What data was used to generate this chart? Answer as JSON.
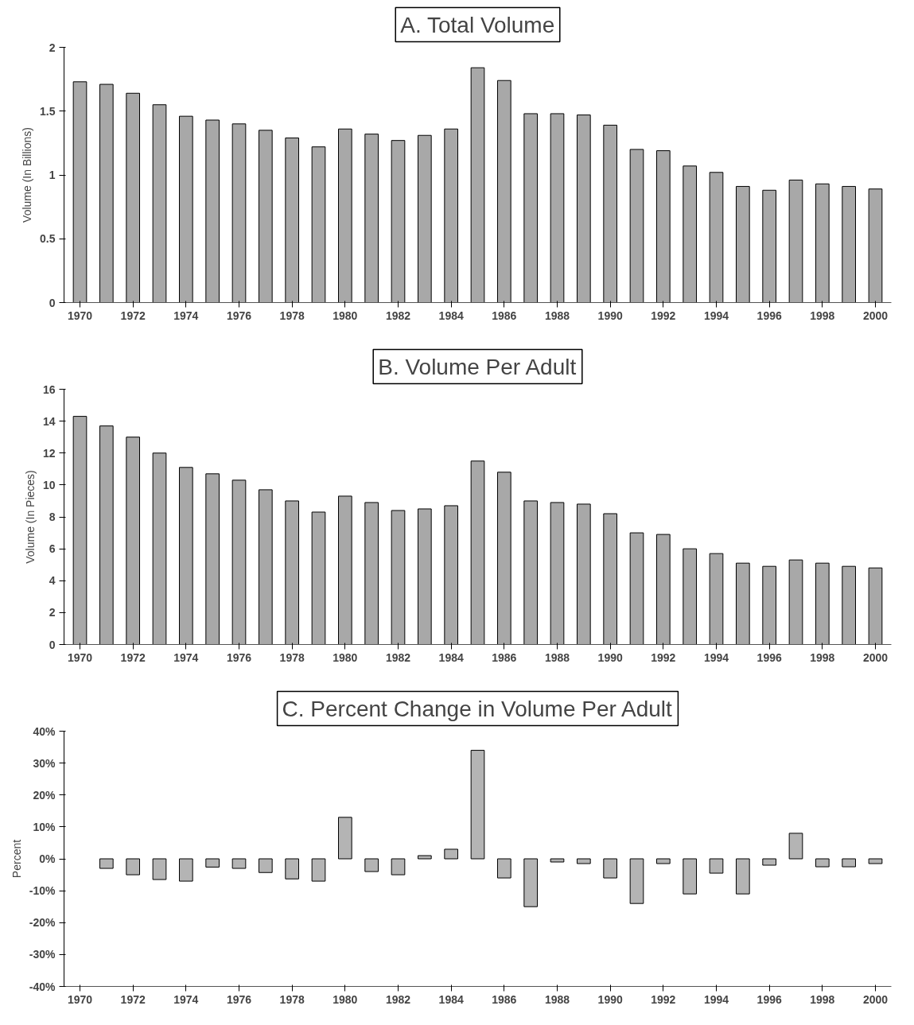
{
  "chart_data": [
    {
      "type": "bar",
      "title": "A. Total Volume",
      "ylabel": "Volume (In Billions)",
      "color": "#a8a8a8",
      "x": [
        1970,
        1971,
        1972,
        1973,
        1974,
        1975,
        1976,
        1977,
        1978,
        1979,
        1980,
        1981,
        1982,
        1983,
        1984,
        1985,
        1986,
        1987,
        1988,
        1989,
        1990,
        1991,
        1992,
        1993,
        1994,
        1995,
        1996,
        1997,
        1998,
        1999,
        2000
      ],
      "values": [
        1.73,
        1.71,
        1.64,
        1.55,
        1.46,
        1.43,
        1.4,
        1.35,
        1.29,
        1.22,
        1.36,
        1.32,
        1.27,
        1.31,
        1.36,
        1.84,
        1.74,
        1.48,
        1.48,
        1.47,
        1.39,
        1.2,
        1.19,
        1.07,
        1.02,
        0.91,
        0.88,
        0.96,
        0.93,
        0.91,
        0.89
      ],
      "xlim": [
        1969.4,
        2000.6
      ],
      "xticks": [
        1970,
        1972,
        1974,
        1976,
        1978,
        1980,
        1982,
        1984,
        1986,
        1988,
        1990,
        1992,
        1994,
        1996,
        1998,
        2000
      ],
      "ylim": [
        0,
        2
      ],
      "yticks": [
        0,
        0.5,
        1,
        1.5,
        2
      ],
      "grid": false
    },
    {
      "type": "bar",
      "title": "B. Volume Per Adult",
      "ylabel": "Volume (In Pieces)",
      "color": "#a8a8a8",
      "x": [
        1970,
        1971,
        1972,
        1973,
        1974,
        1975,
        1976,
        1977,
        1978,
        1979,
        1980,
        1981,
        1982,
        1983,
        1984,
        1985,
        1986,
        1987,
        1988,
        1989,
        1990,
        1991,
        1992,
        1993,
        1994,
        1995,
        1996,
        1997,
        1998,
        1999,
        2000
      ],
      "values": [
        14.3,
        13.7,
        13.0,
        12.0,
        11.1,
        10.7,
        10.3,
        9.7,
        9.0,
        8.3,
        9.3,
        8.9,
        8.4,
        8.5,
        8.7,
        11.5,
        10.8,
        9.0,
        8.9,
        8.8,
        8.2,
        7.0,
        6.9,
        6.0,
        5.7,
        5.1,
        4.9,
        5.3,
        5.1,
        4.9,
        4.8
      ],
      "xlim": [
        1969.4,
        2000.6
      ],
      "xticks": [
        1970,
        1972,
        1974,
        1976,
        1978,
        1980,
        1982,
        1984,
        1986,
        1988,
        1990,
        1992,
        1994,
        1996,
        1998,
        2000
      ],
      "ylim": [
        0,
        16
      ],
      "yticks": [
        0,
        2,
        4,
        6,
        8,
        10,
        12,
        14,
        16
      ],
      "grid": false
    },
    {
      "type": "bar",
      "title": "C. Percent Change in Volume Per Adult",
      "ylabel": "Percent",
      "color": "#b4b4b4",
      "x": [
        1971,
        1972,
        1973,
        1974,
        1975,
        1976,
        1977,
        1978,
        1979,
        1980,
        1981,
        1982,
        1983,
        1984,
        1985,
        1986,
        1987,
        1988,
        1989,
        1990,
        1991,
        1992,
        1993,
        1994,
        1995,
        1996,
        1997,
        1998,
        1999,
        2000
      ],
      "values": [
        -3,
        -5,
        -6.5,
        -7,
        -2.6,
        -3,
        -4.3,
        -6.3,
        -7,
        13,
        -4,
        -5,
        1,
        3,
        34,
        -6,
        -15,
        -1,
        -1.5,
        -6,
        -14,
        -1.5,
        -11,
        -4.5,
        -11,
        -2,
        8,
        -2.5,
        -2.5,
        -1.5
      ],
      "xlim": [
        1969.4,
        2000.6
      ],
      "xticks": [
        1970,
        1972,
        1974,
        1976,
        1978,
        1980,
        1982,
        1984,
        1986,
        1988,
        1990,
        1992,
        1994,
        1996,
        1998,
        2000
      ],
      "ylim": [
        -40,
        40
      ],
      "yticks": [
        {
          "value": -40,
          "label": "-40%"
        },
        {
          "value": -30,
          "label": "-30%"
        },
        {
          "value": -20,
          "label": "-20%"
        },
        {
          "value": -10,
          "label": "-10%"
        },
        {
          "value": 0,
          "label": "0%"
        },
        {
          "value": 10,
          "label": "10%"
        },
        {
          "value": 20,
          "label": "20%"
        },
        {
          "value": 30,
          "label": "30%"
        },
        {
          "value": 40,
          "label": "40%"
        }
      ],
      "grid": false
    }
  ]
}
